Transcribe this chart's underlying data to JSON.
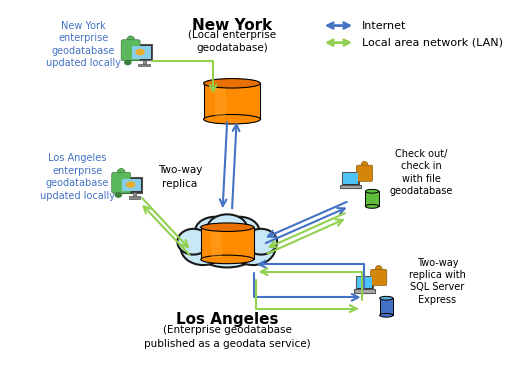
{
  "title_ny": "New York",
  "subtitle_ny": "(Local enterprise\ngeodatabase)",
  "title_la": "Los Angeles",
  "subtitle_la": "(Enterprise geodatabase\npublished as a geodata service)",
  "label_ny_local": "New York\nenterprise\ngeodatabase\nupdated locally",
  "label_la_local": "Los Angeles\nenterprise\ngeodatabase\nupdated locally",
  "label_checkout": "Check out/\ncheck in\nwith file\ngeodatabase",
  "label_twoway_center": "Two-way\nreplica",
  "label_twoway_sql": "Two-way\nreplica with\nSQL Server\nExpress",
  "legend_internet": "Internet",
  "legend_lan": "Local area network (LAN)",
  "color_internet": "#4472C4",
  "color_lan": "#92D050",
  "color_db_orange": "#FF8C00",
  "color_db_green": "#70AD47",
  "color_db_blue": "#4472C4",
  "color_person_green": "#70AD47",
  "color_person_orange": "#FFA500",
  "bg_color": "#FFFFFF",
  "text_color": "#000000",
  "text_color_blue": "#4472C4"
}
